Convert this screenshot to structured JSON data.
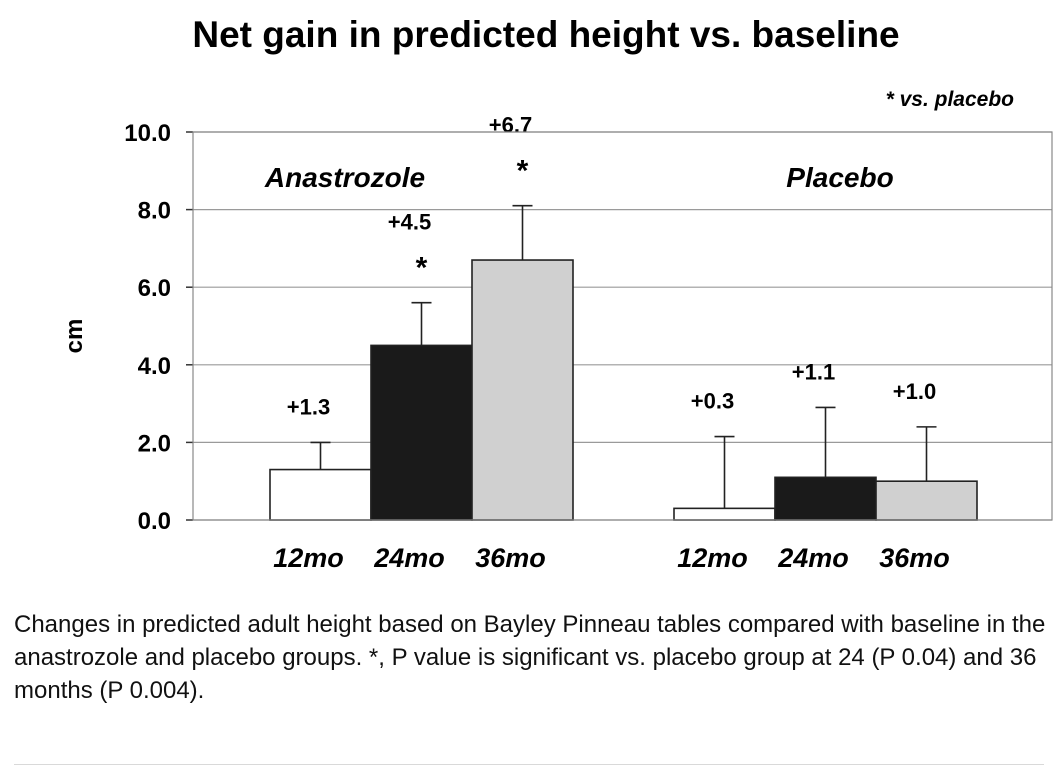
{
  "chart_data": {
    "type": "bar",
    "title": "Net gain in predicted height vs. baseline",
    "ylabel": "cm",
    "xlabel": "",
    "ylim": [
      0,
      10
    ],
    "yticks": [
      "0.0",
      "2.0",
      "4.0",
      "6.0",
      "8.0",
      "10.0"
    ],
    "grid": true,
    "note": "* vs. placebo",
    "groups": [
      {
        "name": "Anastrozole",
        "bars": [
          {
            "category": "12mo",
            "value": 1.3,
            "error": 0.7,
            "label": "+1.3",
            "star": "",
            "color": "#ffffff"
          },
          {
            "category": "24mo",
            "value": 4.5,
            "error": 1.1,
            "label": "+4.5",
            "star": "*",
            "color": "#1a1a1a"
          },
          {
            "category": "36mo",
            "value": 6.7,
            "error": 1.4,
            "label": "+6.7",
            "star": "*",
            "color": "#d0d0d0"
          }
        ]
      },
      {
        "name": "Placebo",
        "bars": [
          {
            "category": "12mo",
            "value": 0.3,
            "error": 1.85,
            "label": "+0.3",
            "star": "",
            "color": "#ffffff"
          },
          {
            "category": "24mo",
            "value": 1.1,
            "error": 1.8,
            "label": "+1.1",
            "star": "",
            "color": "#1a1a1a"
          },
          {
            "category": "36mo",
            "value": 1.0,
            "error": 1.4,
            "label": "+1.0",
            "star": "",
            "color": "#d0d0d0"
          }
        ]
      }
    ]
  },
  "caption": "Changes in predicted adult height based on Bayley Pinneau tables compared with baseline in the anastrozole and placebo groups. *, P value is significant vs. placebo group at 24 (P 0.04) and 36 months (P 0.004)."
}
